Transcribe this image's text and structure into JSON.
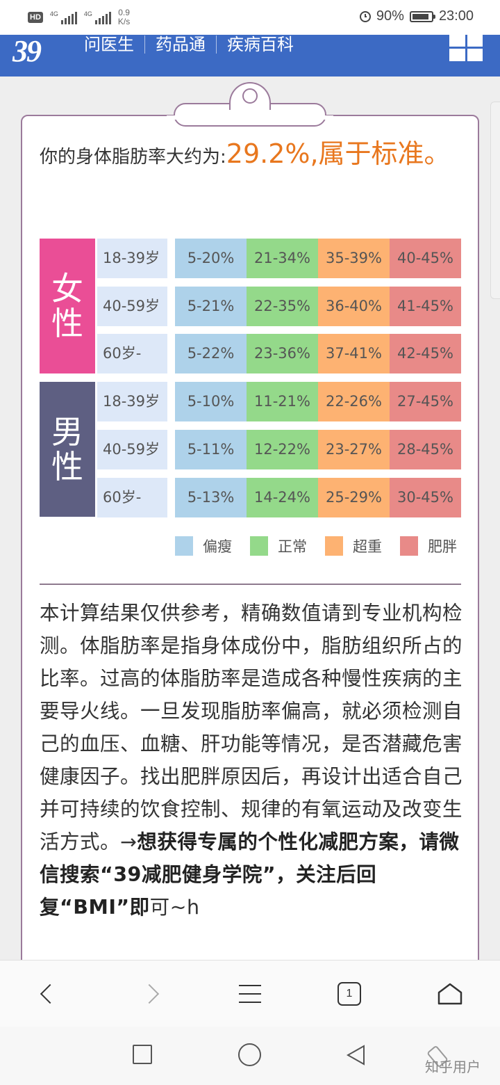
{
  "status_bar": {
    "hd_badge": "HD",
    "sim1": "4G",
    "sim2": "4G",
    "speed_value": "0.9",
    "speed_unit": "K/s",
    "battery": "90%",
    "time": "23:00"
  },
  "site_header": {
    "logo": "39",
    "nav": [
      "问医生",
      "药品通",
      "疾病百科"
    ]
  },
  "result": {
    "prefix": "你的身体脂肪率大约为:",
    "value": "29.2%,属于标准。"
  },
  "table": {
    "groups": [
      {
        "gender": "女性",
        "color": "#ea4e96",
        "rows": [
          {
            "age": "18-39岁",
            "ranges": [
              "5-20%",
              "21-34%",
              "35-39%",
              "40-45%"
            ]
          },
          {
            "age": "40-59岁",
            "ranges": [
              "5-21%",
              "22-35%",
              "36-40%",
              "41-45%"
            ]
          },
          {
            "age": "60岁-",
            "ranges": [
              "5-22%",
              "23-36%",
              "37-41%",
              "42-45%"
            ]
          }
        ]
      },
      {
        "gender": "男性",
        "color": "#5e5f82",
        "rows": [
          {
            "age": "18-39岁",
            "ranges": [
              "5-10%",
              "11-21%",
              "22-26%",
              "27-45%"
            ]
          },
          {
            "age": "40-59岁",
            "ranges": [
              "5-11%",
              "12-22%",
              "23-27%",
              "28-45%"
            ]
          },
          {
            "age": "60岁-",
            "ranges": [
              "5-13%",
              "14-24%",
              "25-29%",
              "30-45%"
            ]
          }
        ]
      }
    ],
    "legend": [
      {
        "label": "偏瘦",
        "color": "#aed2ea"
      },
      {
        "label": "正常",
        "color": "#94d98a"
      },
      {
        "label": "超重",
        "color": "#fdb272"
      },
      {
        "label": "肥胖",
        "color": "#e88a88"
      }
    ]
  },
  "description": {
    "normal": "本计算结果仅供参考，精确数值请到专业机构检测。体脂肪率是指身体成份中，脂肪组织所占的比率。过高的体脂肪率是造成各种慢性疾病的主要导火线。一旦发现脂肪率偏高，就必须检测自己的血压、血糖、肝功能等情况，是否潜藏危害健康因子。找出肥胖原因后，再设计出适合自己并可持续的饮食控制、规律的有氧运动及改变生活方式。→",
    "bold": "想获得专属的个性化减肥方案，请微信搜索“39减肥健身学院”，关注后回复“BMI”即",
    "tail": "可~h"
  },
  "browser_toolbar": {
    "tab_count": "1",
    "icons": [
      "back-icon",
      "forward-icon",
      "menu-icon",
      "tabs-icon",
      "home-icon"
    ]
  },
  "system_nav": {
    "icons": [
      "recents-icon",
      "home-circle-icon",
      "back-triangle-icon",
      "rotate-icon"
    ]
  },
  "watermark": "知乎用户"
}
